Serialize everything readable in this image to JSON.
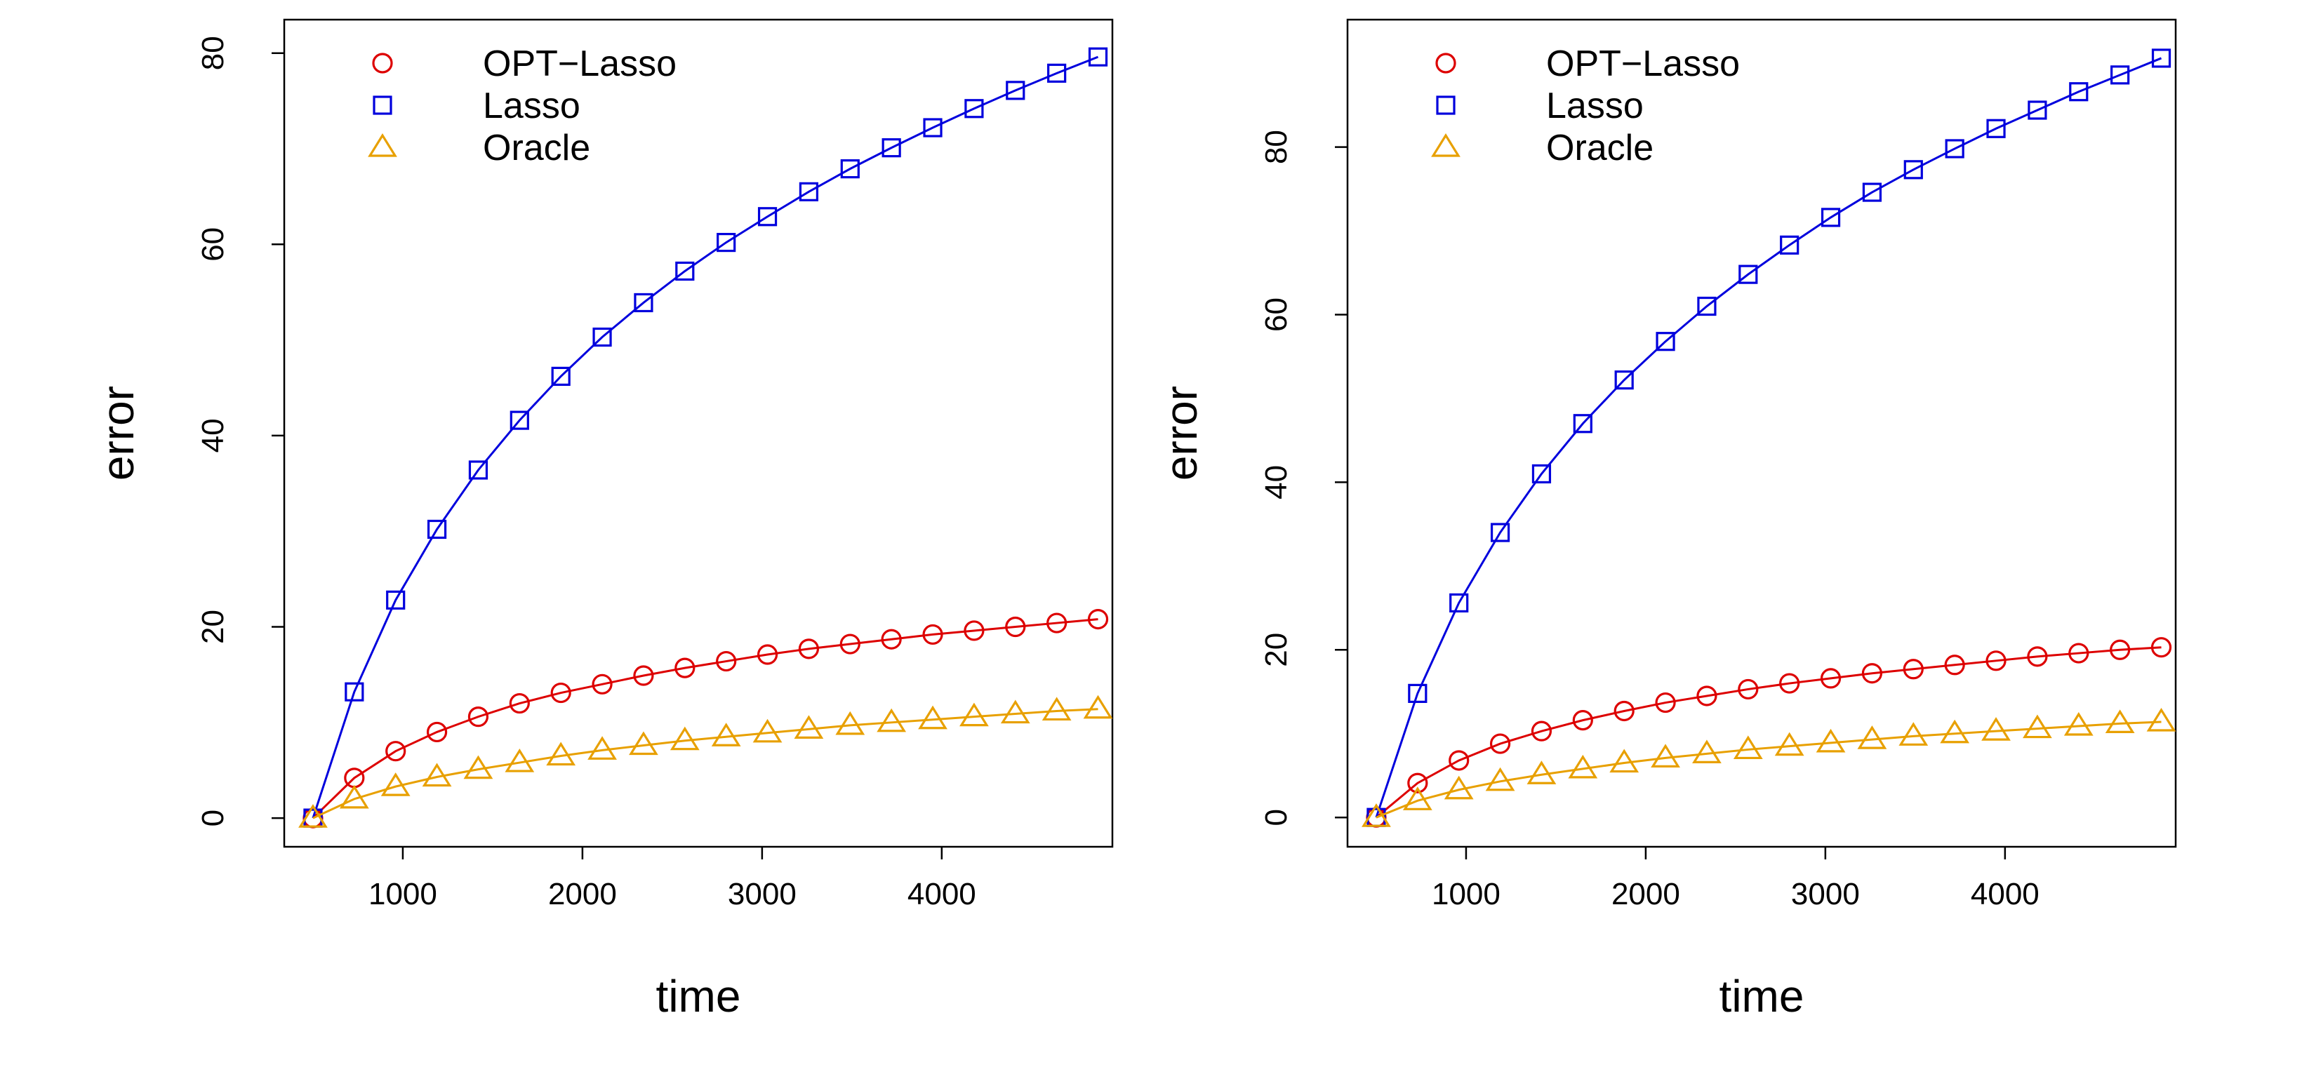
{
  "colors": {
    "opt_lasso": "#DD0000",
    "lasso": "#0000DD",
    "oracle": "#E8A000",
    "axis": "#000000",
    "background": "#ffffff"
  },
  "chart_data": [
    {
      "type": "line",
      "xlabel": "time",
      "ylabel": "error",
      "xlim": [
        340,
        4950
      ],
      "ylim": [
        -3,
        83.5
      ],
      "xticks": [
        1000,
        2000,
        3000,
        4000
      ],
      "xtick_labels": [
        "1000",
        "2000",
        "3000",
        "4000"
      ],
      "yticks": [
        0,
        20,
        40,
        60,
        80
      ],
      "ytick_labels": [
        "0",
        "20",
        "40",
        "60",
        "80"
      ],
      "grid": false,
      "legend_position": "top-left",
      "x": [
        500,
        730,
        960,
        1190,
        1420,
        1650,
        1880,
        2110,
        2340,
        2570,
        2800,
        3030,
        3260,
        3490,
        3720,
        3950,
        4180,
        4410,
        4640,
        4870
      ],
      "series": [
        {
          "name": "OPT−Lasso",
          "marker": "circle",
          "color_key": "opt_lasso",
          "values": [
            0,
            4.2,
            7.0,
            9.0,
            10.6,
            12.0,
            13.1,
            14.0,
            14.9,
            15.7,
            16.4,
            17.1,
            17.7,
            18.2,
            18.7,
            19.2,
            19.6,
            20.0,
            20.4,
            20.8
          ]
        },
        {
          "name": "Lasso",
          "marker": "square",
          "color_key": "lasso",
          "values": [
            0,
            13.2,
            22.8,
            30.2,
            36.4,
            41.6,
            46.2,
            50.3,
            53.9,
            57.2,
            60.2,
            62.9,
            65.5,
            67.9,
            70.1,
            72.2,
            74.2,
            76.1,
            77.9,
            79.6
          ]
        },
        {
          "name": "Oracle",
          "marker": "triangle",
          "color_key": "oracle",
          "values": [
            0,
            2.0,
            3.3,
            4.3,
            5.1,
            5.8,
            6.5,
            7.1,
            7.6,
            8.1,
            8.5,
            8.9,
            9.3,
            9.7,
            10.0,
            10.3,
            10.6,
            10.9,
            11.2,
            11.4
          ]
        }
      ]
    },
    {
      "type": "line",
      "xlabel": "time",
      "ylabel": "error",
      "xlim": [
        340,
        4950
      ],
      "ylim": [
        -3.5,
        95.2
      ],
      "xticks": [
        1000,
        2000,
        3000,
        4000
      ],
      "xtick_labels": [
        "1000",
        "2000",
        "3000",
        "4000"
      ],
      "yticks": [
        0,
        20,
        40,
        60,
        80
      ],
      "ytick_labels": [
        "0",
        "20",
        "40",
        "60",
        "80"
      ],
      "grid": false,
      "legend_position": "top-left",
      "x": [
        500,
        730,
        960,
        1190,
        1420,
        1650,
        1880,
        2110,
        2340,
        2570,
        2800,
        3030,
        3260,
        3490,
        3720,
        3950,
        4180,
        4410,
        4640,
        4870
      ],
      "series": [
        {
          "name": "OPT−Lasso",
          "marker": "circle",
          "color_key": "opt_lasso",
          "values": [
            0,
            4.1,
            6.8,
            8.8,
            10.3,
            11.6,
            12.7,
            13.7,
            14.5,
            15.3,
            16.0,
            16.6,
            17.2,
            17.7,
            18.2,
            18.7,
            19.2,
            19.6,
            20.0,
            20.3
          ]
        },
        {
          "name": "Lasso",
          "marker": "square",
          "color_key": "lasso",
          "values": [
            0,
            14.8,
            25.6,
            34.0,
            41.0,
            47.0,
            52.2,
            56.8,
            61.0,
            64.8,
            68.3,
            71.6,
            74.6,
            77.3,
            79.8,
            82.2,
            84.4,
            86.6,
            88.6,
            90.6
          ]
        },
        {
          "name": "Oracle",
          "marker": "triangle",
          "color_key": "oracle",
          "values": [
            0,
            2.0,
            3.3,
            4.3,
            5.1,
            5.8,
            6.5,
            7.1,
            7.6,
            8.1,
            8.5,
            8.9,
            9.3,
            9.7,
            10.0,
            10.3,
            10.6,
            10.9,
            11.2,
            11.4
          ]
        }
      ]
    }
  ]
}
